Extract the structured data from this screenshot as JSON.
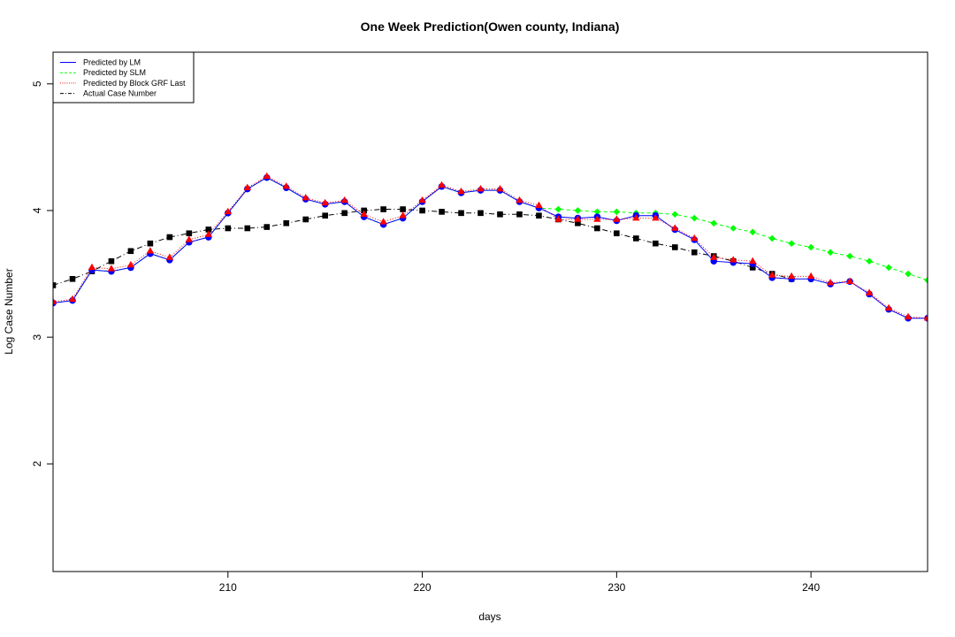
{
  "chart_data": {
    "type": "line",
    "title": "One Week Prediction(Owen county, Indiana)",
    "xlabel": "days",
    "ylabel": "Log Case Number",
    "xlim": [
      201,
      246
    ],
    "ylim": [
      1.15,
      5.25
    ],
    "x_ticks": [
      "210",
      "220",
      "230",
      "240"
    ],
    "y_ticks": [
      "2",
      "3",
      "4",
      "5"
    ],
    "legend": {
      "position": "top-left",
      "entries": [
        "Predicted by LM",
        "Predicted by SLM",
        "Predicted by Block GRF Last",
        "Actual Case Number"
      ]
    },
    "x": [
      201,
      202,
      203,
      204,
      205,
      206,
      207,
      208,
      209,
      210,
      211,
      212,
      213,
      214,
      215,
      216,
      217,
      218,
      219,
      220,
      221,
      222,
      223,
      224,
      225,
      226,
      227,
      228,
      229,
      230,
      231,
      232,
      233,
      234,
      235,
      236,
      237,
      238,
      239,
      240,
      241,
      242,
      243,
      244,
      245,
      246
    ],
    "series": [
      {
        "name": "Predicted by LM",
        "color": "#0000ff",
        "values": [
          3.27,
          3.29,
          3.53,
          3.52,
          3.55,
          3.66,
          3.61,
          3.75,
          3.79,
          3.98,
          4.17,
          4.26,
          4.18,
          4.09,
          4.05,
          4.07,
          3.95,
          3.89,
          3.94,
          4.07,
          4.19,
          4.14,
          4.16,
          4.16,
          4.07,
          4.02,
          3.95,
          3.94,
          3.95,
          3.92,
          3.96,
          3.96,
          3.85,
          3.77,
          3.6,
          3.59,
          3.58,
          3.47,
          3.46,
          3.46,
          3.42,
          3.44,
          3.34,
          3.22,
          3.15,
          3.15
        ]
      },
      {
        "name": "Predicted by SLM",
        "color": "#00ff00",
        "values": [
          3.27,
          3.29,
          3.53,
          3.52,
          3.55,
          3.66,
          3.61,
          3.75,
          3.79,
          3.98,
          4.17,
          4.26,
          4.18,
          4.09,
          4.05,
          4.07,
          3.95,
          3.89,
          3.94,
          4.07,
          4.19,
          4.14,
          4.16,
          4.16,
          4.07,
          4.02,
          4.01,
          4.0,
          3.99,
          3.99,
          3.98,
          3.98,
          3.97,
          3.94,
          3.9,
          3.86,
          3.83,
          3.78,
          3.74,
          3.71,
          3.67,
          3.64,
          3.6,
          3.55,
          3.5,
          3.45
        ]
      },
      {
        "name": "Predicted by Block GRF Last",
        "color": "#ff0000",
        "values": [
          3.28,
          3.3,
          3.55,
          3.54,
          3.57,
          3.68,
          3.63,
          3.77,
          3.81,
          3.99,
          4.18,
          4.27,
          4.19,
          4.1,
          4.06,
          4.08,
          3.97,
          3.91,
          3.96,
          4.08,
          4.2,
          4.15,
          4.17,
          4.17,
          4.08,
          4.04,
          3.93,
          3.93,
          3.93,
          3.93,
          3.94,
          3.94,
          3.86,
          3.78,
          3.63,
          3.61,
          3.6,
          3.49,
          3.48,
          3.48,
          3.43,
          3.44,
          3.35,
          3.23,
          3.16,
          3.15
        ]
      },
      {
        "name": "Actual Case Number",
        "color": "#000000",
        "values": [
          3.41,
          3.46,
          3.52,
          3.6,
          3.68,
          3.74,
          3.79,
          3.82,
          3.85,
          3.86,
          3.86,
          3.87,
          3.9,
          3.93,
          3.96,
          3.98,
          4.0,
          4.01,
          4.01,
          4.0,
          3.99,
          3.98,
          3.98,
          3.97,
          3.97,
          3.96,
          3.93,
          3.9,
          3.86,
          3.82,
          3.78,
          3.74,
          3.71,
          3.67,
          3.64,
          3.6,
          3.55,
          3.5,
          3.46,
          null,
          null,
          null,
          null,
          null,
          null,
          null
        ]
      }
    ]
  }
}
